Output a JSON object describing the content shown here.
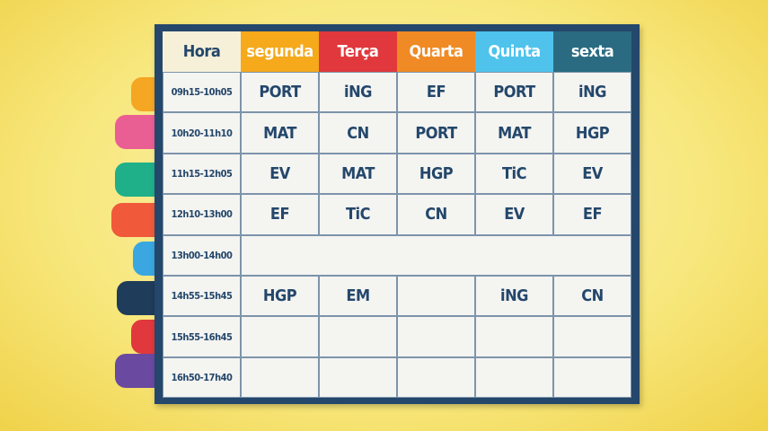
{
  "table": {
    "header": [
      "Hora",
      "segunda",
      "Terça",
      "Quarta",
      "Quinta",
      "sexta"
    ],
    "rows": [
      {
        "time": "09h15-10h05",
        "cells": [
          "PORT",
          "iNG",
          "EF",
          "PORT",
          "iNG"
        ]
      },
      {
        "time": "10h20-11h10",
        "cells": [
          "MAT",
          "CN",
          "PORT",
          "MAT",
          "HGP"
        ]
      },
      {
        "time": "11h15-12h05",
        "cells": [
          "EV",
          "MAT",
          "HGP",
          "TiC",
          "EV"
        ]
      },
      {
        "time": "12h10-13h00",
        "cells": [
          "EF",
          "TiC",
          "CN",
          "EV",
          "EF"
        ]
      },
      {
        "time": "13h00-14h00",
        "cells": []
      },
      {
        "time": "14h55-15h45",
        "cells": [
          "HGP",
          "EM",
          null,
          "iNG",
          "CN"
        ]
      },
      {
        "time": "15h55-16h45",
        "cells": [
          null,
          null,
          null,
          null,
          null
        ]
      },
      {
        "time": "16h50-17h40",
        "cells": [
          null,
          null,
          null,
          null,
          null
        ]
      }
    ]
  }
}
